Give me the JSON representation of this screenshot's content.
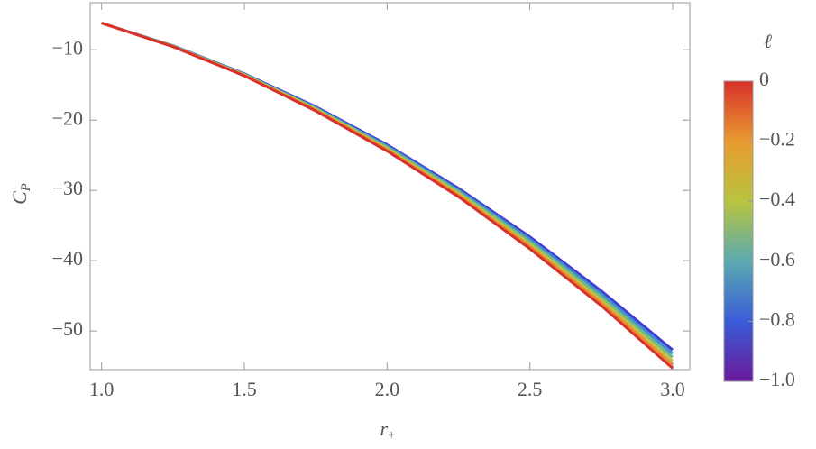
{
  "chart_data": {
    "type": "line",
    "xlabel": [
      "r",
      "+"
    ],
    "ylabel": [
      "C",
      "P"
    ],
    "x": [
      1,
      1.25,
      1.5,
      1.75,
      2,
      2.25,
      2.5,
      2.75,
      3
    ],
    "series": [
      {
        "color": "#4338d8",
        "values": [
          -6.2,
          -9.41,
          -13.4,
          -18.1,
          -23.5,
          -29.7,
          -36.6,
          -44.3,
          -52.7
        ]
      },
      {
        "color": "#3f8fc8",
        "values": [
          -6.2,
          -9.44,
          -13.46,
          -18.22,
          -23.68,
          -29.94,
          -36.94,
          -44.72,
          -53.22
        ]
      },
      {
        "color": "#6cb890",
        "values": [
          -6.2,
          -9.47,
          -13.52,
          -18.34,
          -23.86,
          -30.18,
          -37.28,
          -45.14,
          -53.74
        ]
      },
      {
        "color": "#c2c040",
        "values": [
          -6.2,
          -9.5,
          -13.58,
          -18.46,
          -24.04,
          -30.42,
          -37.62,
          -45.56,
          -54.26
        ]
      },
      {
        "color": "#e98a30",
        "values": [
          -6.2,
          -9.53,
          -13.64,
          -18.58,
          -24.22,
          -30.66,
          -37.96,
          -45.98,
          -54.78
        ]
      },
      {
        "color": "#d8302a",
        "values": [
          -6.2,
          -9.56,
          -13.7,
          -18.7,
          -24.4,
          -30.9,
          -38.3,
          -46.4,
          -55.3
        ]
      }
    ],
    "xlim": [
      0.96,
      3.06
    ],
    "ylim": [
      -55.5,
      -3.3
    ],
    "xticks": [
      {
        "value": 1,
        "label": "1.0"
      },
      1.5,
      {
        "value": 2,
        "label": "2.0"
      },
      2.5,
      {
        "value": 3,
        "label": "3.0"
      }
    ],
    "yticks": [
      {
        "value": -10,
        "label": "−10"
      },
      {
        "value": -20,
        "label": "−20"
      },
      {
        "value": -30,
        "label": "−30"
      },
      {
        "value": -40,
        "label": "−40"
      },
      {
        "value": -50,
        "label": "−50"
      }
    ],
    "colorbar": {
      "title": "ℓ",
      "clim": [
        -1,
        0
      ],
      "colors": [
        "#6a1a9a",
        "#3a5cd8",
        "#5aaab0",
        "#b8c43e",
        "#e89a30",
        "#d8302a"
      ],
      "ticks": [
        0,
        {
          "value": -0.2,
          "label": "−0.2"
        },
        {
          "value": -0.4,
          "label": "−0.4"
        },
        {
          "value": -0.6,
          "label": "−0.6"
        },
        {
          "value": -0.8,
          "label": "−0.8"
        },
        {
          "value": -1,
          "label": "−1.0"
        }
      ]
    }
  }
}
